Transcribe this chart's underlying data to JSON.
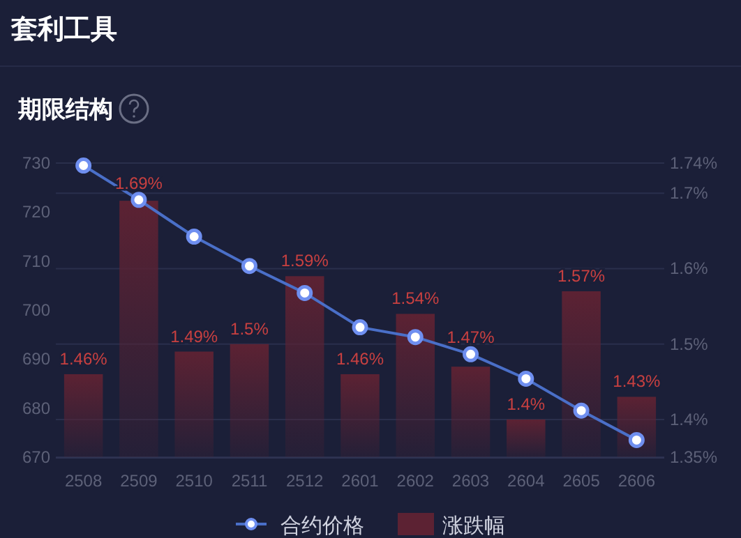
{
  "chart_data": {
    "type": "bar",
    "title": "套利工具",
    "subtitle": "期限结构",
    "categories": [
      "2508",
      "2509",
      "2510",
      "2511",
      "2512",
      "2601",
      "2602",
      "2603",
      "2604",
      "2605",
      "2606"
    ],
    "ylim": [
      670,
      730
    ],
    "yticks": [
      670,
      680,
      690,
      700,
      710,
      720,
      730
    ],
    "y2lim": [
      1.35,
      1.74
    ],
    "y2ticks": [
      {
        "value": 1.35,
        "label": "1.35%"
      },
      {
        "value": 1.4,
        "label": "1.4%"
      },
      {
        "value": 1.5,
        "label": "1.5%"
      },
      {
        "value": 1.6,
        "label": "1.6%"
      },
      {
        "value": 1.7,
        "label": "1.7%"
      },
      {
        "value": 1.74,
        "label": "1.74%"
      }
    ],
    "grid": "y2",
    "legend": "bottom",
    "marker": "circle",
    "series": [
      {
        "name": "合约价格",
        "type": "line",
        "color": "#4a6fc8",
        "values": [
          729.5,
          722.5,
          715,
          709,
          703.5,
          696.5,
          694.5,
          691,
          686,
          679.5,
          673.5
        ]
      },
      {
        "name": "涨跌幅",
        "axis": "y2",
        "color": "#5c2233",
        "values": [
          1.46,
          1.69,
          1.49,
          1.5,
          1.59,
          1.46,
          1.54,
          1.47,
          1.4,
          1.57,
          1.43
        ],
        "value_labels": [
          "1.46%",
          "1.69%",
          "1.49%",
          "1.5%",
          "1.59%",
          "1.46%",
          "1.54%",
          "1.47%",
          "1.4%",
          "1.57%",
          "1.43%"
        ]
      }
    ]
  }
}
